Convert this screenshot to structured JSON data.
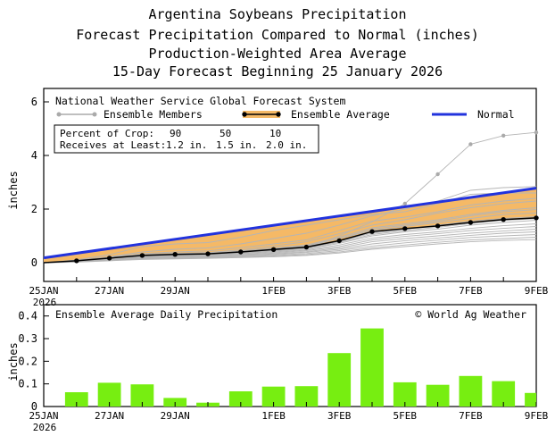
{
  "titles": {
    "line1": "Argentina Soybeans Precipitation",
    "line2": "Forecast Precipitation Compared to Normal (inches)",
    "line3": "Production-Weighted Area Average",
    "line4": "15-Day Forecast Beginning 25 January 2026"
  },
  "chart_data": [
    {
      "type": "line",
      "title": "National Weather Service Global Forecast System",
      "ylabel": "inches",
      "xlabel": "",
      "ylim": [
        -0.7,
        6.5
      ],
      "y_ticks": [
        0,
        2,
        4,
        6
      ],
      "x_ticks": [
        {
          "day": 0,
          "label": "25JAN"
        },
        {
          "day": 2,
          "label": "27JAN"
        },
        {
          "day": 4,
          "label": "29JAN"
        },
        {
          "day": 7,
          "label": "1FEB"
        },
        {
          "day": 9,
          "label": "3FEB"
        },
        {
          "day": 11,
          "label": "5FEB"
        },
        {
          "day": 13,
          "label": "7FEB"
        },
        {
          "day": 15,
          "label": "9FEB"
        }
      ],
      "x_year_label": "2026",
      "legend": {
        "members_label": "Ensemble Members",
        "average_label": "Ensemble Average",
        "normal_label": "Normal"
      },
      "crop_table": {
        "header_label": "Percent of Crop:",
        "receive_label": "Receives at Least:",
        "percents": [
          "90",
          "50",
          "10"
        ],
        "amounts": [
          "1.2 in.",
          "1.5 in.",
          "2.0 in."
        ]
      },
      "series": [
        {
          "name": "Normal",
          "color": "#2233dd",
          "x": [
            0,
            15
          ],
          "values": [
            0.18,
            2.78
          ]
        },
        {
          "name": "Ensemble Average",
          "color": "#000000",
          "x": [
            0,
            1,
            2,
            3,
            4,
            5,
            6,
            7,
            8,
            9,
            10,
            11,
            12,
            13,
            14,
            15
          ],
          "values": [
            0.0,
            0.07,
            0.17,
            0.27,
            0.31,
            0.33,
            0.4,
            0.49,
            0.58,
            0.82,
            1.16,
            1.27,
            1.37,
            1.5,
            1.61,
            1.67
          ]
        },
        {
          "name": "Ensemble Members",
          "color": "#aaaaaa",
          "x": [
            0,
            1,
            2,
            3,
            4,
            5,
            6,
            7,
            8,
            9,
            10,
            11,
            12,
            13,
            14,
            15
          ],
          "members": [
            [
              0,
              0.06,
              0.15,
              0.24,
              0.27,
              0.29,
              0.36,
              0.47,
              0.57,
              1.0,
              1.52,
              2.2,
              3.3,
              4.42,
              4.74,
              4.86
            ],
            [
              0,
              0.1,
              0.3,
              0.6,
              0.7,
              0.75,
              0.95,
              1.2,
              1.4,
              1.6,
              1.8,
              1.9,
              2.2,
              2.55,
              2.6,
              2.6
            ],
            [
              0,
              0.08,
              0.22,
              0.4,
              0.5,
              0.55,
              0.7,
              0.9,
              1.1,
              1.4,
              1.75,
              2.0,
              2.3,
              2.7,
              2.8,
              2.84
            ],
            [
              0,
              0.07,
              0.18,
              0.3,
              0.35,
              0.38,
              0.48,
              0.62,
              0.78,
              1.08,
              1.4,
              1.6,
              1.85,
              2.05,
              2.2,
              2.3
            ],
            [
              0,
              0.07,
              0.17,
              0.28,
              0.32,
              0.35,
              0.44,
              0.55,
              0.66,
              0.95,
              1.3,
              1.45,
              1.6,
              1.8,
              1.95,
              2.05
            ],
            [
              0,
              0.06,
              0.16,
              0.26,
              0.3,
              0.32,
              0.4,
              0.5,
              0.6,
              0.9,
              1.2,
              1.35,
              1.5,
              1.65,
              1.8,
              1.85
            ],
            [
              0,
              0.06,
              0.15,
              0.25,
              0.29,
              0.31,
              0.38,
              0.47,
              0.56,
              0.8,
              1.1,
              1.25,
              1.4,
              1.55,
              1.65,
              1.72
            ],
            [
              0,
              0.05,
              0.14,
              0.23,
              0.27,
              0.29,
              0.35,
              0.43,
              0.52,
              0.72,
              1.0,
              1.15,
              1.25,
              1.4,
              1.5,
              1.58
            ],
            [
              0,
              0.05,
              0.13,
              0.22,
              0.26,
              0.28,
              0.33,
              0.4,
              0.48,
              0.66,
              0.92,
              1.05,
              1.15,
              1.28,
              1.38,
              1.45
            ],
            [
              0,
              0.05,
              0.12,
              0.2,
              0.24,
              0.26,
              0.3,
              0.37,
              0.45,
              0.6,
              0.85,
              0.98,
              1.08,
              1.2,
              1.28,
              1.35
            ],
            [
              0,
              0.04,
              0.11,
              0.19,
              0.22,
              0.24,
              0.28,
              0.34,
              0.41,
              0.55,
              0.78,
              0.9,
              1.0,
              1.1,
              1.18,
              1.25
            ],
            [
              0,
              0.04,
              0.1,
              0.17,
              0.2,
              0.22,
              0.26,
              0.31,
              0.38,
              0.5,
              0.7,
              0.82,
              0.92,
              1.02,
              1.1,
              1.15
            ],
            [
              0,
              0.03,
              0.09,
              0.15,
              0.18,
              0.2,
              0.23,
              0.28,
              0.34,
              0.45,
              0.62,
              0.74,
              0.84,
              0.94,
              1.0,
              1.05
            ],
            [
              0,
              0.03,
              0.08,
              0.13,
              0.16,
              0.18,
              0.21,
              0.25,
              0.3,
              0.4,
              0.55,
              0.66,
              0.76,
              0.85,
              0.9,
              0.95
            ],
            [
              0,
              0.02,
              0.07,
              0.12,
              0.14,
              0.16,
              0.19,
              0.22,
              0.27,
              0.36,
              0.5,
              0.6,
              0.7,
              0.78,
              0.83,
              0.86
            ],
            [
              0,
              0.08,
              0.2,
              0.34,
              0.4,
              0.44,
              0.56,
              0.7,
              0.85,
              1.2,
              1.55,
              1.7,
              1.9,
              2.15,
              2.3,
              2.4
            ],
            [
              0,
              0.06,
              0.16,
              0.27,
              0.31,
              0.34,
              0.42,
              0.52,
              0.63,
              0.9,
              1.25,
              1.4,
              1.55,
              1.75,
              1.9,
              1.98
            ],
            [
              0,
              0.05,
              0.14,
              0.24,
              0.28,
              0.3,
              0.37,
              0.45,
              0.54,
              0.76,
              1.05,
              1.2,
              1.32,
              1.46,
              1.58,
              1.64
            ]
          ]
        }
      ],
      "shaded_area": {
        "name": "Departure from Normal",
        "color": "#f5b966",
        "between": [
          "Ensemble Average",
          "Normal"
        ]
      }
    },
    {
      "type": "bar",
      "title": "Ensemble Average Daily Precipitation",
      "credit": "© World Ag Weather",
      "ylabel": "inches",
      "xlabel": "",
      "ylim": [
        0,
        0.45
      ],
      "y_ticks": [
        0,
        0.1,
        0.2,
        0.3,
        0.4
      ],
      "x_ticks": [
        {
          "day": 0,
          "label": "25JAN"
        },
        {
          "day": 2,
          "label": "27JAN"
        },
        {
          "day": 4,
          "label": "29JAN"
        },
        {
          "day": 7,
          "label": "1FEB"
        },
        {
          "day": 9,
          "label": "3FEB"
        },
        {
          "day": 11,
          "label": "5FEB"
        },
        {
          "day": 13,
          "label": "7FEB"
        },
        {
          "day": 15,
          "label": "9FEB"
        }
      ],
      "x_year_label": "2026",
      "bar_color": "#77ee11",
      "categories": [
        "25JAN",
        "26JAN",
        "27JAN",
        "28JAN",
        "29JAN",
        "30JAN",
        "31JAN",
        "1FEB",
        "2FEB",
        "3FEB",
        "4FEB",
        "5FEB",
        "6FEB",
        "7FEB",
        "8FEB",
        "9FEB"
      ],
      "values": [
        0.0,
        0.063,
        0.105,
        0.098,
        0.038,
        0.017,
        0.067,
        0.088,
        0.09,
        0.236,
        0.345,
        0.107,
        0.096,
        0.135,
        0.112,
        0.06
      ]
    }
  ]
}
